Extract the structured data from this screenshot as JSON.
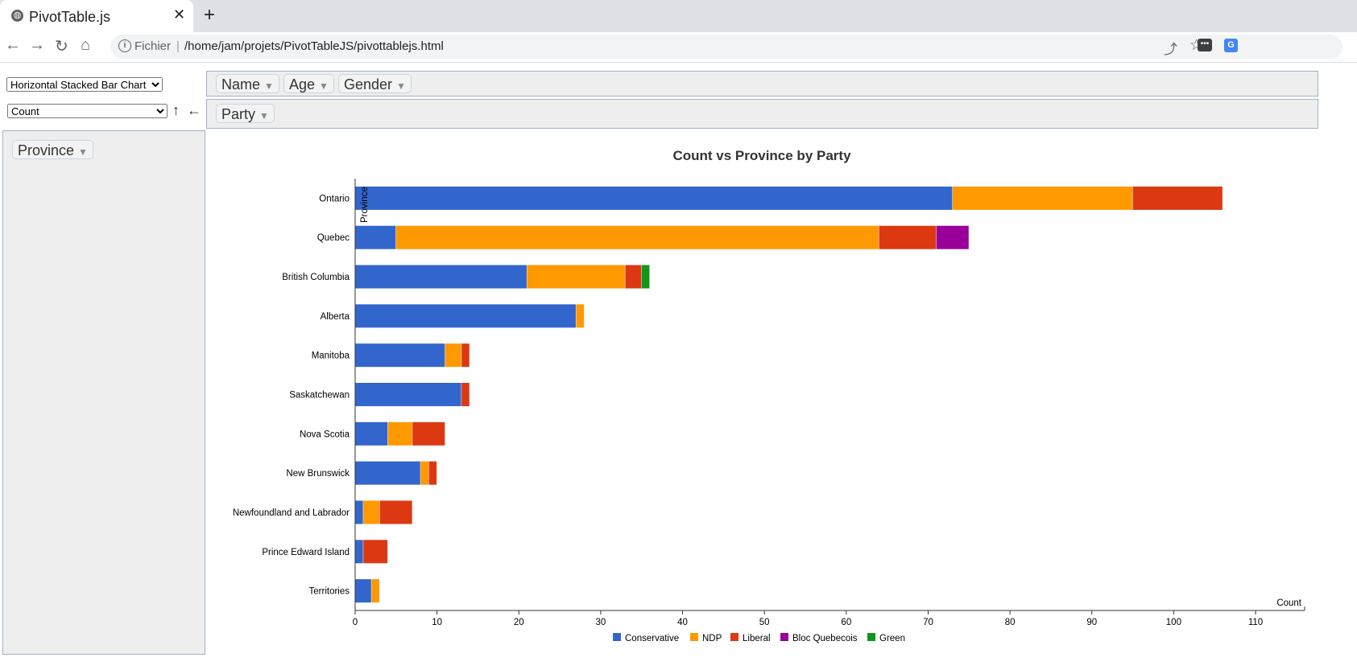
{
  "browser": {
    "tab_title": "PivotTable.js",
    "address_scheme": "Fichier",
    "address_url": "/home/jam/projets/PivotTableJS/pivottablejs.html"
  },
  "controls": {
    "renderer": "Horizontal Stacked Bar Chart",
    "aggregator": "Count",
    "sort_up": "↑",
    "sort_left": "←"
  },
  "unused_attrs": [
    "Name",
    "Age",
    "Gender"
  ],
  "col_attrs": [
    "Party"
  ],
  "row_attrs": [
    "Province"
  ],
  "colors": {
    "Conservative": "#3366cc",
    "NDP": "#ff9900",
    "Liberal": "#dc3912",
    "Bloc Quebecois": "#990099",
    "Green": "#109618"
  },
  "chart_data": {
    "type": "bar",
    "orientation": "horizontal",
    "stacked": true,
    "title": "Count vs Province by Party",
    "xlabel": "Count",
    "ylabel": "Province",
    "xlim": [
      0,
      116
    ],
    "xticks": [
      0,
      10,
      20,
      30,
      40,
      50,
      60,
      70,
      80,
      90,
      100,
      110
    ],
    "grid": false,
    "legend": "bottom",
    "categories": [
      "Ontario",
      "Quebec",
      "British Columbia",
      "Alberta",
      "Manitoba",
      "Saskatchewan",
      "Nova Scotia",
      "New Brunswick",
      "Newfoundland and Labrador",
      "Prince Edward Island",
      "Territories"
    ],
    "series": [
      {
        "name": "Conservative",
        "values": [
          73,
          5,
          21,
          27,
          11,
          13,
          4,
          8,
          1,
          1,
          2
        ]
      },
      {
        "name": "NDP",
        "values": [
          22,
          59,
          12,
          1,
          2,
          0,
          3,
          1,
          2,
          0,
          1
        ]
      },
      {
        "name": "Liberal",
        "values": [
          11,
          7,
          2,
          0,
          1,
          1,
          4,
          1,
          4,
          3,
          0
        ]
      },
      {
        "name": "Bloc Quebecois",
        "values": [
          0,
          4,
          0,
          0,
          0,
          0,
          0,
          0,
          0,
          0,
          0
        ]
      },
      {
        "name": "Green",
        "values": [
          0,
          0,
          1,
          0,
          0,
          0,
          0,
          0,
          0,
          0,
          0
        ]
      }
    ]
  }
}
